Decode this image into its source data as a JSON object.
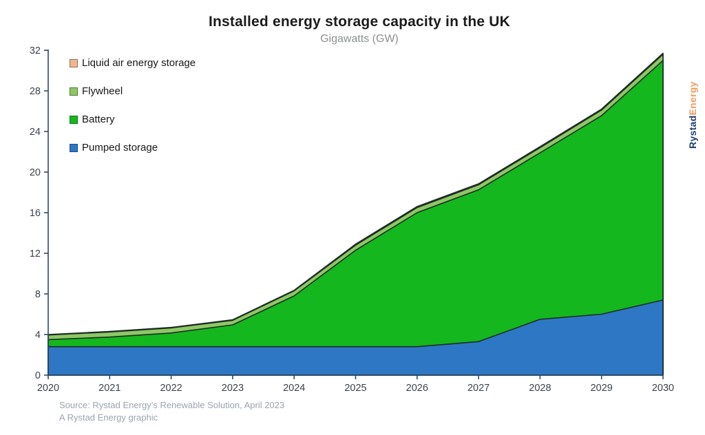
{
  "title": "Installed energy storage capacity in the UK",
  "subtitle": "Gigawatts (GW)",
  "source": {
    "line1": "Source: Rystad Energy’s Renewable Solution, April 2023",
    "line2": "A Rystad Energy graphic"
  },
  "branding": {
    "part1": "Rystad",
    "part2": "Energy",
    "part1_color": "#1f3e6e",
    "part2_color": "#f09b5f"
  },
  "legend": [
    {
      "label": "Liquid air energy storage",
      "color": "#f2b68e",
      "border": "#8a7257"
    },
    {
      "label": "Flywheel",
      "color": "#8ec765",
      "border": "#4f7a33"
    },
    {
      "label": "Battery",
      "color": "#14b71e",
      "border": "#0b7a14"
    },
    {
      "label": "Pumped storage",
      "color": "#2e77c5",
      "border": "#1c4a80"
    }
  ],
  "chart_data": {
    "type": "area",
    "stacked": true,
    "title": "Installed energy storage capacity in the UK",
    "ylabel": "Gigawatts (GW)",
    "x": [
      2020,
      2021,
      2022,
      2023,
      2024,
      2025,
      2026,
      2027,
      2028,
      2029,
      2030
    ],
    "series": [
      {
        "name": "Pumped storage",
        "color": "#2e77c5",
        "values": [
          2.8,
          2.8,
          2.8,
          2.8,
          2.8,
          2.8,
          2.8,
          3.3,
          5.5,
          6.0,
          7.4
        ]
      },
      {
        "name": "Battery",
        "color": "#14b71e",
        "values": [
          0.7,
          0.95,
          1.35,
          2.15,
          5.0,
          9.5,
          13.2,
          14.95,
          16.4,
          19.55,
          23.6
        ]
      },
      {
        "name": "Flywheel",
        "color": "#8ec765",
        "values": [
          0.45,
          0.5,
          0.5,
          0.45,
          0.5,
          0.5,
          0.5,
          0.5,
          0.5,
          0.55,
          0.6
        ]
      },
      {
        "name": "Liquid air energy storage",
        "color": "#f2b68e",
        "values": [
          0.05,
          0.05,
          0.05,
          0.05,
          0.05,
          0.1,
          0.1,
          0.1,
          0.1,
          0.1,
          0.1
        ]
      }
    ],
    "totals": [
      4.0,
      4.3,
      4.7,
      5.45,
      8.35,
      12.9,
      16.6,
      18.85,
      22.5,
      26.2,
      31.7
    ],
    "ylim": [
      0,
      32
    ],
    "yticks": [
      0,
      4,
      8,
      12,
      16,
      20,
      24,
      28,
      32
    ],
    "grid": false,
    "legend_position": "top-left",
    "outline_color": "#1d2c24",
    "axis_color": "#2c4a66",
    "tick_label_color": "#3c434b"
  }
}
